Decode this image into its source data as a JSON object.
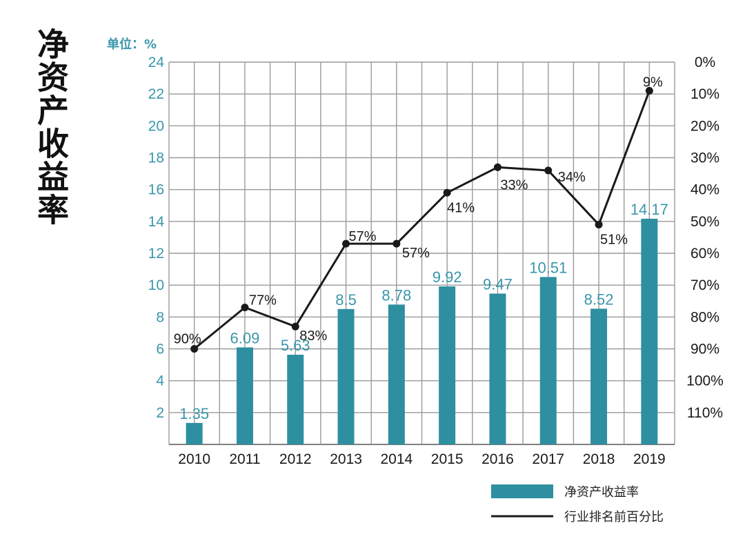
{
  "title": "净资产收益率",
  "colors": {
    "bar": "#2e8fa0",
    "line": "#1a1a1a",
    "accent_text": "#3a96aa"
  },
  "chart_data": {
    "type": "bar+line",
    "title": "净资产收益率",
    "unit_label": "单位：%",
    "categories": [
      "2010",
      "2011",
      "2012",
      "2013",
      "2014",
      "2015",
      "2016",
      "2017",
      "2018",
      "2019"
    ],
    "series": [
      {
        "name": "净资产收益率",
        "type": "bar",
        "axis": "left",
        "values": [
          1.35,
          6.09,
          5.63,
          8.5,
          8.78,
          9.92,
          9.47,
          10.51,
          8.52,
          14.17
        ],
        "labels": [
          "1.35",
          "6.09",
          "5.63",
          "8.5",
          "8.78",
          "9.92",
          "9.47",
          "10.51",
          "8.52",
          "14.17"
        ]
      },
      {
        "name": "行业排名前百分比",
        "type": "line",
        "axis": "right",
        "values": [
          90,
          77,
          83,
          57,
          57,
          41,
          33,
          34,
          51,
          9
        ],
        "labels": [
          "90%",
          "77%",
          "83%",
          "57%",
          "57%",
          "41%",
          "33%",
          "34%",
          "51%",
          "9%"
        ]
      }
    ],
    "left_axis": {
      "min": 0,
      "max": 24,
      "ticks": [
        "2",
        "4",
        "6",
        "8",
        "10",
        "12",
        "14",
        "16",
        "18",
        "20",
        "22",
        "24"
      ]
    },
    "right_axis": {
      "min": 0,
      "max": 120,
      "inverted": true,
      "ticks": [
        "0%",
        "10%",
        "20%",
        "30%",
        "40%",
        "50%",
        "60%",
        "70%",
        "80%",
        "90%",
        "100%",
        "110%"
      ]
    },
    "grid": true,
    "legend": [
      {
        "label": "净资产收益率",
        "kind": "bar"
      },
      {
        "label": "行业排名前百分比",
        "kind": "line"
      }
    ],
    "legend_position": "bottom-right"
  }
}
